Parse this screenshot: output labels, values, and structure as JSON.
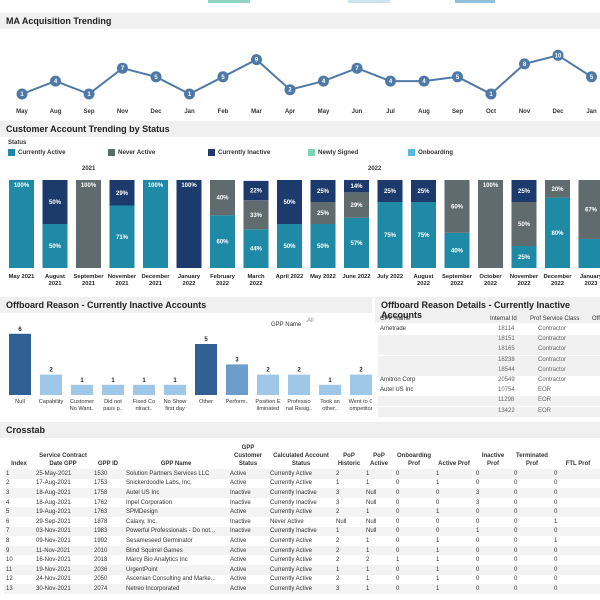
{
  "colors": {
    "currently_active": "#1f8aa5",
    "never_active": "#5f6b6d",
    "currently_inactive": "#1c3a6b",
    "newly_signed": "#7fd3b6",
    "onboarding": "#56b8e3",
    "line": "#4e79a7",
    "offboard_main": "#2f5f93",
    "offboard_light": "#9fc8e8"
  },
  "ma_trending": {
    "title": "MA Acquisition Trending",
    "months": [
      "May",
      "Aug",
      "Sep",
      "Nov",
      "Dec",
      "Jan",
      "Feb",
      "Mar",
      "Apr",
      "May",
      "Jun",
      "Jul",
      "Aug",
      "Sep",
      "Oct",
      "Nov",
      "Dec",
      "Jan"
    ],
    "values": [
      1,
      4,
      1,
      7,
      5,
      1,
      5,
      9,
      2,
      4,
      7,
      4,
      4,
      5,
      1,
      8,
      10,
      5
    ]
  },
  "status_trending": {
    "title": "Customer Account Trending by Status",
    "legend_title": "Status",
    "legend": [
      "Currently Active",
      "Never Active",
      "Currently Inactive",
      "Newly Signed",
      "Onboarding"
    ],
    "year_labels": [
      "2021",
      "2022"
    ],
    "bars": [
      {
        "label": [
          "May 2021"
        ],
        "segs": [
          [
            "active",
            100,
            "100%"
          ]
        ]
      },
      {
        "label": [
          "August",
          "2021"
        ],
        "segs": [
          [
            "active",
            50,
            "50%"
          ],
          [
            "inactive",
            50,
            "50%"
          ]
        ]
      },
      {
        "label": [
          "September",
          "2021"
        ],
        "segs": [
          [
            "never",
            100,
            "100%"
          ]
        ]
      },
      {
        "label": [
          "November",
          "2021"
        ],
        "segs": [
          [
            "active",
            71,
            "71%"
          ],
          [
            "inactive",
            29,
            "29%"
          ]
        ]
      },
      {
        "label": [
          "December",
          "2021"
        ],
        "segs": [
          [
            "active",
            100,
            "100%"
          ]
        ]
      },
      {
        "label": [
          "January",
          "2022"
        ],
        "segs": [
          [
            "inactive",
            100,
            "100%"
          ]
        ]
      },
      {
        "label": [
          "February",
          "2022"
        ],
        "segs": [
          [
            "active",
            60,
            "60%"
          ],
          [
            "never",
            40,
            "40%"
          ]
        ]
      },
      {
        "label": [
          "March",
          "2022"
        ],
        "segs": [
          [
            "active",
            44,
            "44%"
          ],
          [
            "never",
            33,
            "33%"
          ],
          [
            "inactive",
            22,
            "22%"
          ]
        ]
      },
      {
        "label": [
          "April 2022"
        ],
        "segs": [
          [
            "active",
            50,
            "50%"
          ],
          [
            "inactive",
            50,
            "50%"
          ]
        ]
      },
      {
        "label": [
          "May 2022"
        ],
        "segs": [
          [
            "active",
            50,
            "50%"
          ],
          [
            "never",
            25,
            "25%"
          ],
          [
            "inactive",
            25,
            "25%"
          ]
        ]
      },
      {
        "label": [
          "June 2022"
        ],
        "segs": [
          [
            "active",
            57,
            "57%"
          ],
          [
            "never",
            29,
            "29%"
          ],
          [
            "inactive",
            14,
            "14%"
          ]
        ]
      },
      {
        "label": [
          "July 2022"
        ],
        "segs": [
          [
            "active",
            75,
            "75%"
          ],
          [
            "inactive",
            25,
            "25%"
          ]
        ]
      },
      {
        "label": [
          "August",
          "2022"
        ],
        "segs": [
          [
            "active",
            75,
            "75%"
          ],
          [
            "inactive",
            25,
            "25%"
          ]
        ]
      },
      {
        "label": [
          "September",
          "2022"
        ],
        "segs": [
          [
            "active",
            40,
            "40%"
          ],
          [
            "never",
            60,
            "60%"
          ]
        ]
      },
      {
        "label": [
          "October",
          "2022"
        ],
        "segs": [
          [
            "never",
            100,
            "100%"
          ]
        ]
      },
      {
        "label": [
          "November",
          "2022"
        ],
        "segs": [
          [
            "active",
            25,
            "25%"
          ],
          [
            "never",
            50,
            "50%"
          ],
          [
            "inactive",
            25,
            "25%"
          ]
        ]
      },
      {
        "label": [
          "December",
          "2022"
        ],
        "segs": [
          [
            "active",
            80,
            "80%"
          ],
          [
            "never",
            20,
            "20%"
          ]
        ]
      },
      {
        "label": [
          "January",
          "2023"
        ],
        "segs": [
          [
            "active",
            33,
            ""
          ],
          [
            "never",
            67,
            "67%"
          ]
        ]
      }
    ]
  },
  "offboard": {
    "title": "Offboard Reason - Currently Inactive Accounts",
    "header": "GPP Name",
    "filter": "All",
    "bars": [
      {
        "value": 6,
        "label": [
          "Null"
        ],
        "shade": "main"
      },
      {
        "value": 2,
        "label": [
          "Capability"
        ],
        "shade": "light"
      },
      {
        "value": 1,
        "label": [
          "Customer",
          "No Want.."
        ],
        "shade": "light"
      },
      {
        "value": 1,
        "label": [
          "Did not",
          "pass p.."
        ],
        "shade": "light"
      },
      {
        "value": 1,
        "label": [
          "Fixed Co",
          "ntract.."
        ],
        "shade": "light"
      },
      {
        "value": 1,
        "label": [
          "No Show",
          "first day"
        ],
        "shade": "light"
      },
      {
        "value": 5,
        "label": [
          "Other"
        ],
        "shade": "main"
      },
      {
        "value": 3,
        "label": [
          "Perform.."
        ],
        "shade": "mid"
      },
      {
        "value": 2,
        "label": [
          "Position E",
          "liminated"
        ],
        "shade": "light"
      },
      {
        "value": 2,
        "label": [
          "Professio",
          "nal Resig.."
        ],
        "shade": "light"
      },
      {
        "value": 1,
        "label": [
          "Took an",
          "other.."
        ],
        "shade": "light"
      },
      {
        "value": 2,
        "label": [
          "Went to C",
          "ompetitor"
        ],
        "shade": "light"
      }
    ]
  },
  "offboard_details": {
    "title": "Offboard Reason Details - Currently Inactive Accounts",
    "headers": [
      "GPP Name",
      "Internal Id",
      "Prof Service Class",
      "Off"
    ],
    "rows": [
      [
        "Ametrade",
        "18114",
        "Contractor",
        ""
      ],
      [
        "",
        "18151",
        "Contractor",
        ""
      ],
      [
        "",
        "18165",
        "Contractor",
        ""
      ],
      [
        "",
        "18238",
        "Contractor",
        ""
      ],
      [
        "",
        "18544",
        "Contractor",
        ""
      ],
      [
        "Amitron Corp",
        "20549",
        "Contractor",
        ""
      ],
      [
        "Autel US Inc",
        "10754",
        "EOR",
        "Pos"
      ],
      [
        "",
        "11298",
        "EOR",
        "Pos"
      ],
      [
        "",
        "13422",
        "EOR",
        "Pos"
      ]
    ]
  },
  "crosstab": {
    "title": "Crosstab",
    "headers": [
      "Index",
      "Service Contract Date GPP",
      "GPP ID",
      "GPP Name",
      "GPP Customer Status",
      "Calculated Account Status",
      "PoP Historic",
      "PoP Active",
      "Onboarding Prof",
      "Active Prof",
      "Inactive Prof",
      "Terminated Prof",
      "FTL Prof"
    ],
    "rows": [
      [
        "1",
        "25-May-2021",
        "1530",
        "Solution Partners Services LLC",
        "Active",
        "Currently Active",
        "2",
        "1",
        "0",
        "1",
        "0",
        "0",
        "0"
      ],
      [
        "2",
        "17-Aug-2021",
        "1753",
        "Snickerdoodle Labs, Inc.",
        "Active",
        "Currently Active",
        "1",
        "1",
        "0",
        "1",
        "0",
        "0",
        "0"
      ],
      [
        "3",
        "18-Aug-2021",
        "1758",
        "Autel US Inc",
        "Inactive",
        "Currently Inactive",
        "3",
        "Null",
        "0",
        "0",
        "3",
        "0",
        "0"
      ],
      [
        "4",
        "18-Aug-2021",
        "1762",
        "Inpel Corporation",
        "Inactive",
        "Currently Inactive",
        "3",
        "Null",
        "0",
        "0",
        "3",
        "0",
        "0"
      ],
      [
        "5",
        "19-Aug-2021",
        "1763",
        "SPMDesign",
        "Active",
        "Currently Active",
        "2",
        "1",
        "0",
        "1",
        "0",
        "0",
        "0"
      ],
      [
        "6",
        "29-Sep-2021",
        "1878",
        "Calaxy, Inc.",
        "Inactive",
        "Never Active",
        "Null",
        "Null",
        "0",
        "0",
        "0",
        "0",
        "1"
      ],
      [
        "7",
        "03-Nov-2021",
        "1983",
        "Powerful Professionals - Do not...",
        "Inactive",
        "Currently Inactive",
        "1",
        "Null",
        "0",
        "0",
        "1",
        "0",
        "0"
      ],
      [
        "8",
        "09-Nov-2021",
        "1992",
        "Sesameseed Germinator",
        "Active",
        "Currently Active",
        "2",
        "1",
        "0",
        "1",
        "0",
        "0",
        "1"
      ],
      [
        "9",
        "11-Nov-2021",
        "2010",
        "Blind Squirrel Games",
        "Active",
        "Currently Active",
        "2",
        "1",
        "0",
        "1",
        "0",
        "0",
        "0"
      ],
      [
        "10",
        "16-Nov-2021",
        "2018",
        "Marcy Bio Analytics Inc",
        "Active",
        "Currently Active",
        "2",
        "2",
        "1",
        "1",
        "0",
        "0",
        "0"
      ],
      [
        "11",
        "19-Nov-2021",
        "2036",
        "UrgentPoint",
        "Active",
        "Currently Active",
        "1",
        "1",
        "0",
        "1",
        "0",
        "0",
        "0"
      ],
      [
        "12",
        "24-Nov-2021",
        "2050",
        "Ascenian Consulting and Marke...",
        "Active",
        "Currently Active",
        "2",
        "1",
        "0",
        "1",
        "0",
        "0",
        "0"
      ],
      [
        "13",
        "30-Nov-2021",
        "2074",
        "Netreo Incorporated",
        "Active",
        "Currently Active",
        "3",
        "1",
        "0",
        "1",
        "0",
        "0",
        "0"
      ]
    ]
  }
}
